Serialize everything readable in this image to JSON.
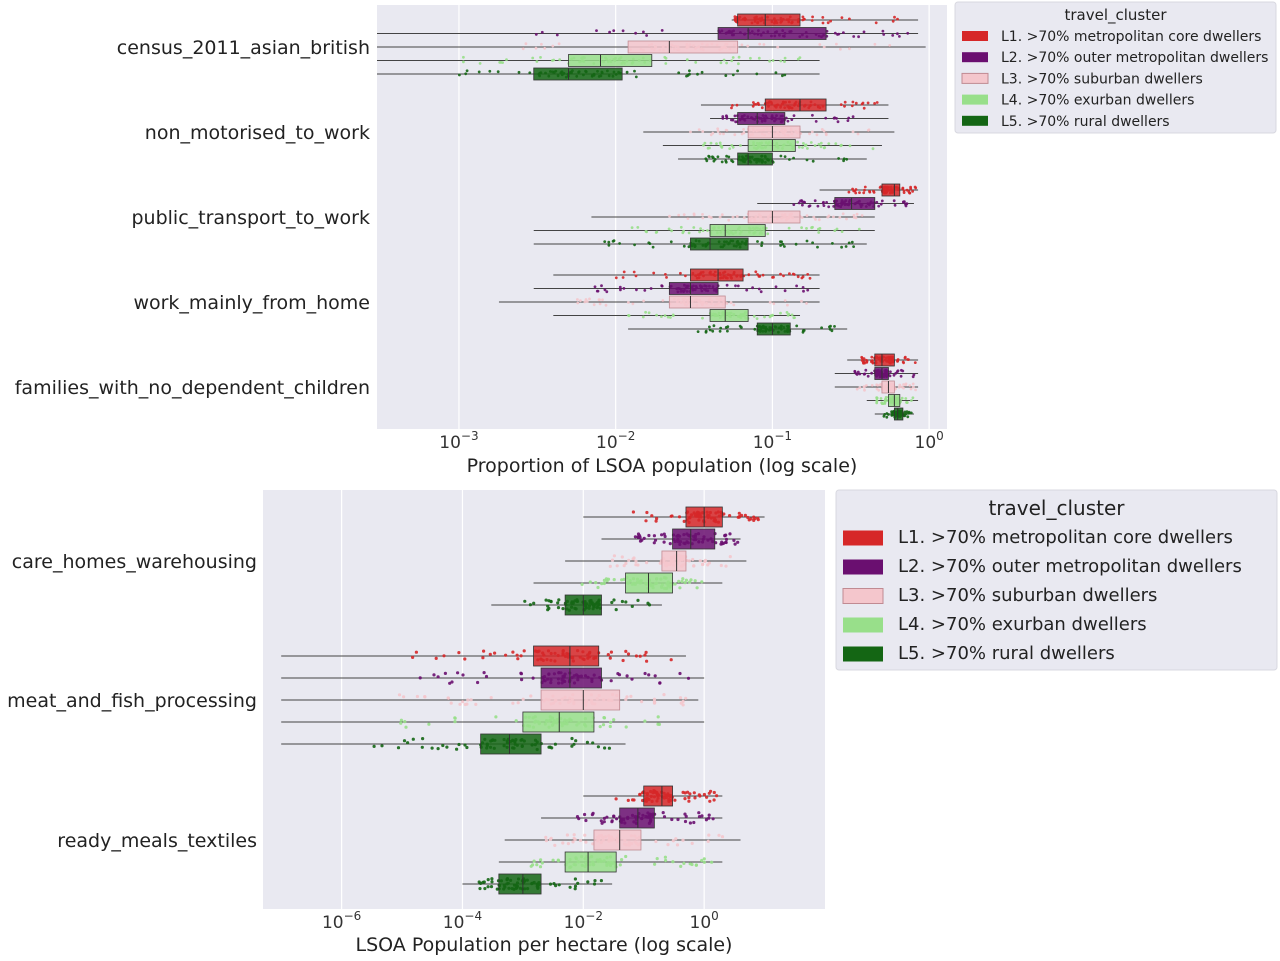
{
  "chart_data": [
    {
      "type": "box",
      "xscale": "log",
      "xlim": [
        0.0003,
        1.3
      ],
      "xticks": [
        {
          "v": 0.001,
          "label": "10^{-3}"
        },
        {
          "v": 0.01,
          "label": "10^{-2}"
        },
        {
          "v": 0.1,
          "label": "10^{-1}"
        },
        {
          "v": 1,
          "label": "10^{0}"
        }
      ],
      "xlabel": "Proportion of LSOA population (log scale)",
      "grid": "vertical",
      "legend_position": "outside-right",
      "legend_title": "travel_cluster",
      "categories": [
        "census_2011_asian_british",
        "non_motorised_to_work",
        "public_transport_to_work",
        "work_mainly_from_home",
        "families_with_no_dependent_children"
      ],
      "series": [
        {
          "name": "L1. >70% metropolitan core dwellers",
          "color": "#d62728",
          "boxes": [
            {
              "min": 0.055,
              "q1": 0.06,
              "median": 0.09,
              "q3": 0.15,
              "max": 0.85
            },
            {
              "min": 0.035,
              "q1": 0.09,
              "median": 0.15,
              "q3": 0.22,
              "max": 0.55
            },
            {
              "min": 0.2,
              "q1": 0.5,
              "median": 0.6,
              "q3": 0.65,
              "max": 0.85
            },
            {
              "min": 0.004,
              "q1": 0.03,
              "median": 0.045,
              "q3": 0.065,
              "max": 0.2
            },
            {
              "min": 0.3,
              "q1": 0.45,
              "median": 0.5,
              "q3": 0.6,
              "max": 0.85
            }
          ]
        },
        {
          "name": "L2. >70% outer metropolitan dwellers",
          "color": "#6a0f70",
          "boxes": [
            {
              "min": 0.0003,
              "q1": 0.045,
              "median": 0.07,
              "q3": 0.22,
              "max": 0.85
            },
            {
              "min": 0.04,
              "q1": 0.06,
              "median": 0.08,
              "q3": 0.12,
              "max": 0.55
            },
            {
              "min": 0.08,
              "q1": 0.25,
              "median": 0.32,
              "q3": 0.45,
              "max": 0.8
            },
            {
              "min": 0.003,
              "q1": 0.022,
              "median": 0.03,
              "q3": 0.045,
              "max": 0.2
            },
            {
              "min": 0.25,
              "q1": 0.45,
              "median": 0.5,
              "q3": 0.55,
              "max": 0.85
            }
          ]
        },
        {
          "name": "L3. >70% suburban dwellers",
          "color": "#f4c6cc",
          "boxes": [
            {
              "min": 0.0003,
              "q1": 0.012,
              "median": 0.022,
              "q3": 0.06,
              "max": 0.95
            },
            {
              "min": 0.015,
              "q1": 0.07,
              "median": 0.1,
              "q3": 0.15,
              "max": 0.6
            },
            {
              "min": 0.007,
              "q1": 0.07,
              "median": 0.1,
              "q3": 0.15,
              "max": 0.45
            },
            {
              "min": 0.0018,
              "q1": 0.022,
              "median": 0.03,
              "q3": 0.05,
              "max": 0.2
            },
            {
              "min": 0.25,
              "q1": 0.5,
              "median": 0.55,
              "q3": 0.6,
              "max": 0.85
            }
          ]
        },
        {
          "name": "L4. >70% exurban dwellers",
          "color": "#98df8a",
          "boxes": [
            {
              "min": 0.0003,
              "q1": 0.005,
              "median": 0.008,
              "q3": 0.017,
              "max": 0.2
            },
            {
              "min": 0.02,
              "q1": 0.07,
              "median": 0.1,
              "q3": 0.14,
              "max": 0.5
            },
            {
              "min": 0.003,
              "q1": 0.04,
              "median": 0.05,
              "q3": 0.09,
              "max": 0.45
            },
            {
              "min": 0.004,
              "q1": 0.04,
              "median": 0.05,
              "q3": 0.07,
              "max": 0.15
            },
            {
              "min": 0.4,
              "q1": 0.55,
              "median": 0.6,
              "q3": 0.65,
              "max": 0.85
            }
          ]
        },
        {
          "name": "L5. >70% rural dwellers",
          "color": "#146614",
          "boxes": [
            {
              "min": 0.0003,
              "q1": 0.003,
              "median": 0.005,
              "q3": 0.011,
              "max": 0.2
            },
            {
              "min": 0.025,
              "q1": 0.06,
              "median": 0.07,
              "q3": 0.1,
              "max": 0.4
            },
            {
              "min": 0.003,
              "q1": 0.03,
              "median": 0.04,
              "q3": 0.07,
              "max": 0.4
            },
            {
              "min": 0.012,
              "q1": 0.08,
              "median": 0.1,
              "q3": 0.13,
              "max": 0.3
            },
            {
              "min": 0.45,
              "q1": 0.6,
              "median": 0.63,
              "q3": 0.68,
              "max": 0.8
            }
          ]
        }
      ]
    },
    {
      "type": "box",
      "xscale": "log",
      "xlim": [
        5e-08,
        100
      ],
      "xticks": [
        {
          "v": 1e-06,
          "label": "10^{-6}"
        },
        {
          "v": 0.0001,
          "label": "10^{-4}"
        },
        {
          "v": 0.01,
          "label": "10^{-2}"
        },
        {
          "v": 1,
          "label": "10^{0}"
        }
      ],
      "xlabel": "LSOA Population per hectare (log scale)",
      "grid": "vertical",
      "legend_position": "outside-right",
      "legend_title": "travel_cluster",
      "categories": [
        "care_homes_warehousing",
        "meat_and_fish_processing",
        "ready_meals_textiles"
      ],
      "series": [
        {
          "name": "L1. >70% metropolitan core dwellers",
          "color": "#d62728",
          "boxes": [
            {
              "min": 0.01,
              "q1": 0.5,
              "median": 1,
              "q3": 2,
              "max": 10
            },
            {
              "min": 1e-07,
              "q1": 0.0015,
              "median": 0.006,
              "q3": 0.018,
              "max": 0.5
            },
            {
              "min": 0.01,
              "q1": 0.1,
              "median": 0.2,
              "q3": 0.3,
              "max": 2
            }
          ]
        },
        {
          "name": "L2. >70% outer metropolitan dwellers",
          "color": "#6a0f70",
          "boxes": [
            {
              "min": 0.02,
              "q1": 0.3,
              "median": 0.6,
              "q3": 1.5,
              "max": 4
            },
            {
              "min": 1e-07,
              "q1": 0.002,
              "median": 0.006,
              "q3": 0.02,
              "max": 1
            },
            {
              "min": 0.002,
              "q1": 0.04,
              "median": 0.08,
              "q3": 0.15,
              "max": 2
            }
          ]
        },
        {
          "name": "L3. >70% suburban dwellers",
          "color": "#f4c6cc",
          "boxes": [
            {
              "min": 0.005,
              "q1": 0.2,
              "median": 0.35,
              "q3": 0.5,
              "max": 5
            },
            {
              "min": 1e-07,
              "q1": 0.002,
              "median": 0.01,
              "q3": 0.04,
              "max": 0.8
            },
            {
              "min": 0.0005,
              "q1": 0.015,
              "median": 0.04,
              "q3": 0.09,
              "max": 4
            }
          ]
        },
        {
          "name": "L4. >70% exurban dwellers",
          "color": "#98df8a",
          "boxes": [
            {
              "min": 0.0015,
              "q1": 0.05,
              "median": 0.12,
              "q3": 0.3,
              "max": 2
            },
            {
              "min": 1e-07,
              "q1": 0.001,
              "median": 0.004,
              "q3": 0.015,
              "max": 1
            },
            {
              "min": 0.0004,
              "q1": 0.005,
              "median": 0.012,
              "q3": 0.035,
              "max": 2
            }
          ]
        },
        {
          "name": "L5. >70% rural dwellers",
          "color": "#146614",
          "boxes": [
            {
              "min": 0.0003,
              "q1": 0.005,
              "median": 0.01,
              "q3": 0.02,
              "max": 0.2
            },
            {
              "min": 1e-07,
              "q1": 0.0002,
              "median": 0.0006,
              "q3": 0.002,
              "max": 0.05
            },
            {
              "min": 0.0001,
              "q1": 0.0004,
              "median": 0.001,
              "q3": 0.002,
              "max": 0.03
            }
          ]
        }
      ]
    }
  ]
}
